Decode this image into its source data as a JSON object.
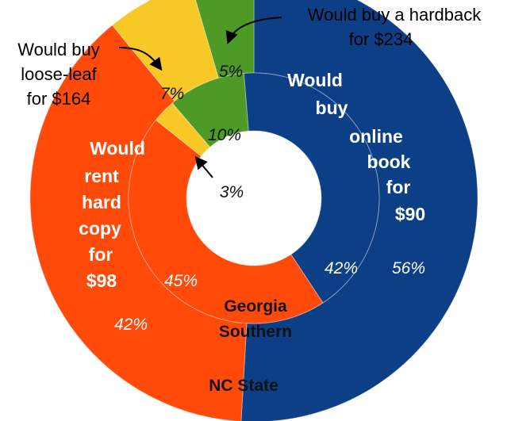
{
  "chart_data": {
    "type": "pie",
    "subtype": "nested-donut",
    "categories": [
      "Would buy online book for $90",
      "Would rent hard copy for $98",
      "Would buy loose-leaf for $164",
      "Would buy a hardback for $234"
    ],
    "category_lines": [
      [
        "Would",
        "buy",
        "online",
        "book",
        "for",
        "$90"
      ],
      [
        "Would",
        "rent",
        "hard",
        "copy",
        "for",
        "$98"
      ],
      [
        "Would buy",
        "loose-leaf",
        "for $164"
      ],
      [
        "Would buy a hardback",
        "for $234"
      ]
    ],
    "colors": [
      "#0d3f87",
      "#ff4a0a",
      "#f8c926",
      "#4d9a26"
    ],
    "series": [
      {
        "name": "NC State",
        "ring": "outer",
        "values": [
          56,
          42,
          7,
          5
        ],
        "labels": [
          "56%",
          "42%",
          "7%",
          "5%"
        ]
      },
      {
        "name": "Georgia Southern",
        "ring": "inner",
        "values": [
          42,
          45,
          3,
          10
        ],
        "labels": [
          "42%",
          "45%",
          "3%",
          "10%"
        ]
      }
    ]
  }
}
